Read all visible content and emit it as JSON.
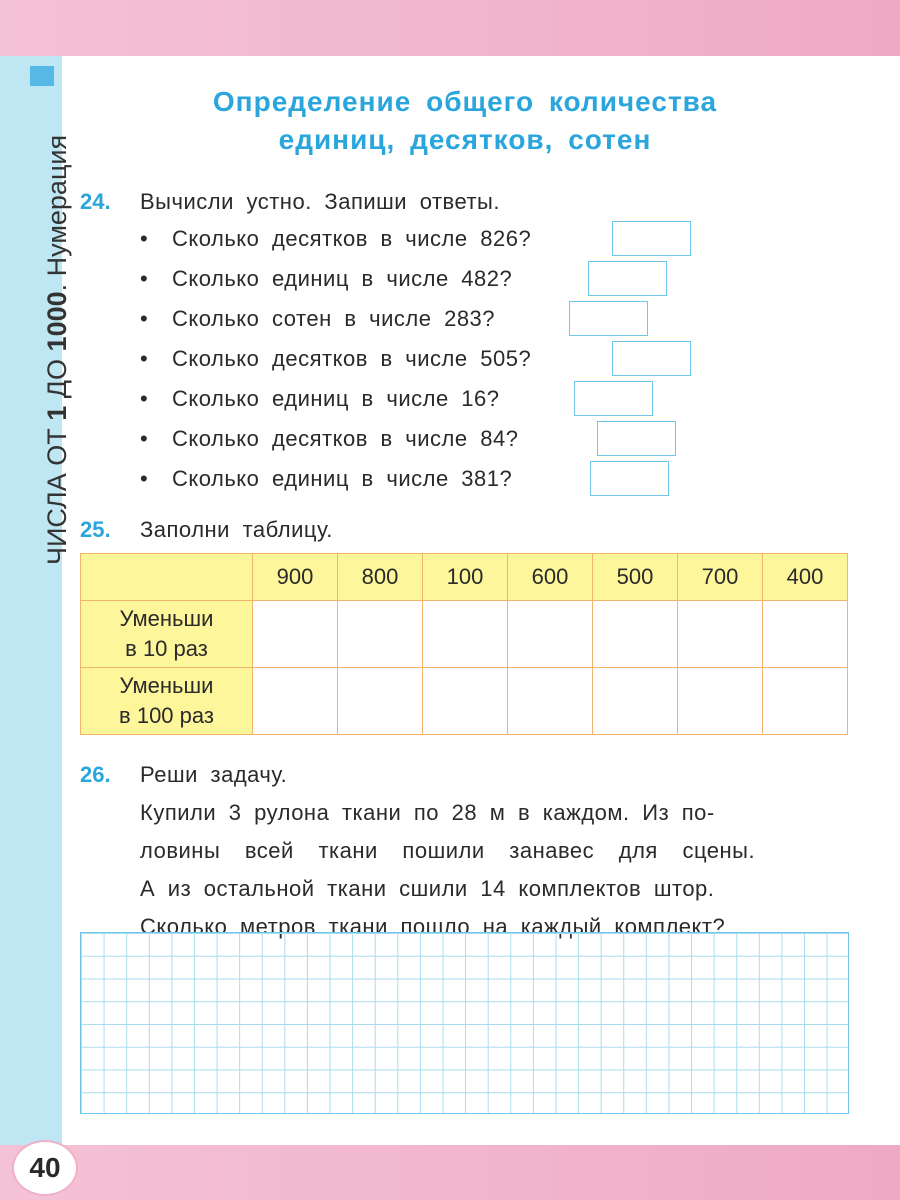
{
  "side": {
    "part1": "ЧИСЛА ОТ ",
    "bold1": "1",
    "part2": " ДО ",
    "bold2": "1000",
    "part3": ". Нумерация"
  },
  "title": {
    "line1": "Определение общего количества",
    "line2": "единиц, десятков, сотен"
  },
  "task24": {
    "number": "24.",
    "text": "Вычисли устно. Запиши ответы.",
    "questions": [
      "Сколько десятков в числе 826?",
      "Сколько единиц в числе 482?",
      "Сколько сотен в числе 283?",
      "Сколько десятков в числе 505?",
      "Сколько единиц в числе 16?",
      "Сколько десятков в числе 84?",
      "Сколько единиц в числе 381?"
    ],
    "bullet": "•"
  },
  "task25": {
    "number": "25.",
    "text": "Заполни таблицу.",
    "columns": [
      "900",
      "800",
      "100",
      "600",
      "500",
      "700",
      "400"
    ],
    "rows": [
      {
        "label1": "Уменьши",
        "label2": "в 10 раз"
      },
      {
        "label1": "Уменьши",
        "label2": "в 100 раз"
      }
    ]
  },
  "task26": {
    "number": "26.",
    "text": "Реши задачу.",
    "lines": [
      "Купили 3 рулона ткани по 28 м в каждом. Из по-",
      "ловины всей ткани пошили занавес для сцены.",
      "А из остальной ткани сшили 14 комплектов штор.",
      "Сколько метров ткани пошло на каждый комплект?"
    ]
  },
  "page_number": "40",
  "colors": {
    "accent": "#2aa6dc",
    "table_header": "#fdf69a",
    "band": "#eeaac4",
    "strip": "#bfe6f3"
  }
}
